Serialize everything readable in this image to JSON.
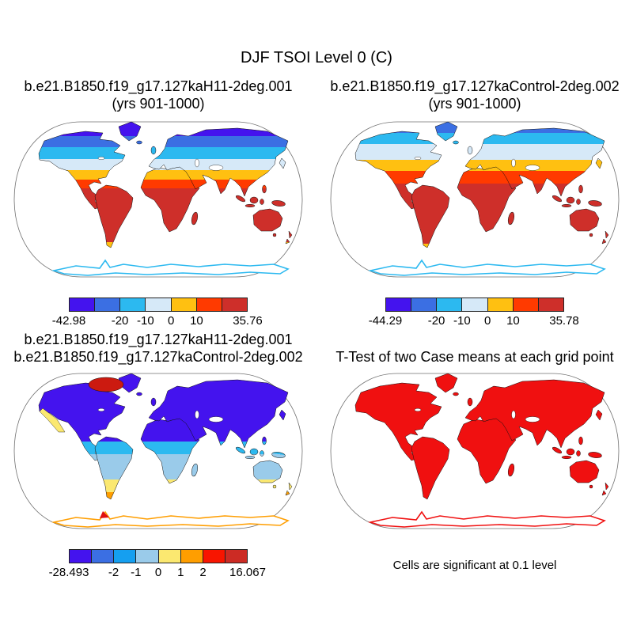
{
  "figure": {
    "title": "DJF TSOI Level 0 (C)"
  },
  "chart_data": [
    {
      "type": "heatmap",
      "panel": "top-left",
      "variable": "DJF TSOI Level 0 (C)",
      "case": "b.e21.B1850.f19_g17.127kaH11-2deg.001",
      "years": "yrs 901-1000",
      "projection": "Robinson",
      "min": -42.98,
      "max": 35.76,
      "labeled_levels": [
        -20,
        -10,
        0,
        10
      ],
      "palette": [
        "#4413EE",
        "#3B6FE3",
        "#2CB9F0",
        "#D6E9F8",
        "#FFC011",
        "#FF3A00",
        "#CE2F2A"
      ]
    },
    {
      "type": "heatmap",
      "panel": "top-right",
      "variable": "DJF TSOI Level 0 (C)",
      "case": "b.e21.B1850.f19_g17.127kaControl-2deg.002",
      "years": "yrs 901-1000",
      "projection": "Robinson",
      "min": -44.29,
      "max": 35.78,
      "labeled_levels": [
        -20,
        -10,
        0,
        10
      ],
      "palette": [
        "#4413EE",
        "#3B6FE3",
        "#2CB9F0",
        "#D6E9F8",
        "#FFC011",
        "#FF3A00",
        "#CE2F2A"
      ]
    },
    {
      "type": "heatmap",
      "panel": "bottom-left",
      "cases": [
        "b.e21.B1850.f19_g17.127kaH11-2deg.001",
        "b.e21.B1850.f19_g17.127kaControl-2deg.002"
      ],
      "projection": "Robinson",
      "min": -28.493,
      "max": 16.067,
      "labeled_levels": [
        -2,
        -1,
        0,
        1,
        2
      ],
      "palette": [
        "#4413EE",
        "#3B6FE3",
        "#159FF0",
        "#9ACBEA",
        "#FBE870",
        "#FF9E00",
        "#F81500",
        "#CC2B24"
      ]
    },
    {
      "type": "heatmap",
      "panel": "bottom-right",
      "title": "T-Test of two Case means at each grid point",
      "note": "Cells are significant at 0.1 level",
      "projection": "Robinson",
      "significant_color": "#F01010"
    }
  ],
  "panels": [
    {
      "title_line1": "b.e21.B1850.f19_g17.127kaH11-2deg.001",
      "title_line2": "(yrs 901-1000)",
      "colorbar": {
        "colors": [
          "#4413EE",
          "#3B6FE3",
          "#2CB9F0",
          "#D6E9F8",
          "#FFC011",
          "#FF3A00",
          "#CE2F2A"
        ],
        "ticks": [
          {
            "label": "-42.98",
            "pos": 0
          },
          {
            "label": "-20",
            "pos": 2
          },
          {
            "label": "-10",
            "pos": 3
          },
          {
            "label": "0",
            "pos": 4
          },
          {
            "label": "10",
            "pos": 5
          },
          {
            "label": "35.76",
            "pos": 7
          }
        ]
      },
      "map": {
        "antarctica_stroke": "#2CB9F0",
        "bands": [
          {
            "o": 0.0,
            "c": "#4413EE"
          },
          {
            "o": 0.1,
            "c": "#4413EE"
          },
          {
            "o": 0.1,
            "c": "#3B6FE3"
          },
          {
            "o": 0.17,
            "c": "#3B6FE3"
          },
          {
            "o": 0.17,
            "c": "#2CB9F0"
          },
          {
            "o": 0.245,
            "c": "#2CB9F0"
          },
          {
            "o": 0.245,
            "c": "#D6E9F8"
          },
          {
            "o": 0.315,
            "c": "#D6E9F8"
          },
          {
            "o": 0.315,
            "c": "#FFC011"
          },
          {
            "o": 0.375,
            "c": "#FFC011"
          },
          {
            "o": 0.375,
            "c": "#FF3A00"
          },
          {
            "o": 0.43,
            "c": "#FF3A00"
          },
          {
            "o": 0.43,
            "c": "#CE2F2A"
          },
          {
            "o": 0.77,
            "c": "#CE2F2A"
          },
          {
            "o": 0.77,
            "c": "#FFC011"
          },
          {
            "o": 1.0,
            "c": "#FFC011"
          }
        ]
      }
    },
    {
      "title_line1": "b.e21.B1850.f19_g17.127kaControl-2deg.002",
      "title_line2": "(yrs 901-1000)",
      "colorbar": {
        "colors": [
          "#4413EE",
          "#3B6FE3",
          "#2CB9F0",
          "#D6E9F8",
          "#FFC011",
          "#FF3A00",
          "#CE2F2A"
        ],
        "ticks": [
          {
            "label": "-44.29",
            "pos": 0
          },
          {
            "label": "-20",
            "pos": 2
          },
          {
            "label": "-10",
            "pos": 3
          },
          {
            "label": "0",
            "pos": 4
          },
          {
            "label": "10",
            "pos": 5
          },
          {
            "label": "35.78",
            "pos": 7
          }
        ]
      },
      "map": {
        "antarctica_stroke": "#2CB9F0",
        "bands": [
          {
            "o": 0.0,
            "c": "#3B6FE3"
          },
          {
            "o": 0.08,
            "c": "#3B6FE3"
          },
          {
            "o": 0.08,
            "c": "#2CB9F0"
          },
          {
            "o": 0.15,
            "c": "#2CB9F0"
          },
          {
            "o": 0.15,
            "c": "#D6E9F8"
          },
          {
            "o": 0.25,
            "c": "#D6E9F8"
          },
          {
            "o": 0.25,
            "c": "#FFC011"
          },
          {
            "o": 0.32,
            "c": "#FFC011"
          },
          {
            "o": 0.32,
            "c": "#FF3A00"
          },
          {
            "o": 0.4,
            "c": "#FF3A00"
          },
          {
            "o": 0.4,
            "c": "#CE2F2A"
          },
          {
            "o": 0.78,
            "c": "#CE2F2A"
          },
          {
            "o": 0.78,
            "c": "#FFC011"
          },
          {
            "o": 1.0,
            "c": "#FFC011"
          }
        ]
      }
    },
    {
      "title_line1": "b.e21.B1850.f19_g17.127kaH11-2deg.001",
      "title_line2": "b.e21.B1850.f19_g17.127kaControl-2deg.002",
      "colorbar": {
        "colors": [
          "#4413EE",
          "#3B6FE3",
          "#159FF0",
          "#9ACBEA",
          "#FBE870",
          "#FF9E00",
          "#F81500",
          "#CC2B24"
        ],
        "ticks": [
          {
            "label": "-28.493",
            "pos": 0
          },
          {
            "label": "-2",
            "pos": 2
          },
          {
            "label": "-1",
            "pos": 3
          },
          {
            "label": "0",
            "pos": 4
          },
          {
            "label": "1",
            "pos": 5
          },
          {
            "label": "2",
            "pos": 6
          },
          {
            "label": "16.067",
            "pos": 8
          }
        ]
      },
      "map": {
        "antarctica_stroke": "#FF9E00",
        "patch_color": "#CC1A10",
        "coast_patch_color": "#FBE870",
        "peninsula_color": "#E01010",
        "bands": [
          {
            "o": 0.0,
            "c": "#4413EE"
          },
          {
            "o": 0.44,
            "c": "#4413EE"
          },
          {
            "o": 0.44,
            "c": "#2CB9F0"
          },
          {
            "o": 0.52,
            "c": "#2CB9F0"
          },
          {
            "o": 0.52,
            "c": "#9ACBEA"
          },
          {
            "o": 0.68,
            "c": "#9ACBEA"
          },
          {
            "o": 0.68,
            "c": "#FBE870"
          },
          {
            "o": 0.76,
            "c": "#FBE870"
          },
          {
            "o": 0.76,
            "c": "#FF9E00"
          },
          {
            "o": 1.0,
            "c": "#FF9E00"
          }
        ]
      }
    },
    {
      "title": "T-Test of two Case means at each grid point",
      "caption": "Cells are significant at 0.1 level",
      "map": {
        "land_color": "#F01010",
        "antarctica_stroke": "#F01010"
      }
    }
  ]
}
